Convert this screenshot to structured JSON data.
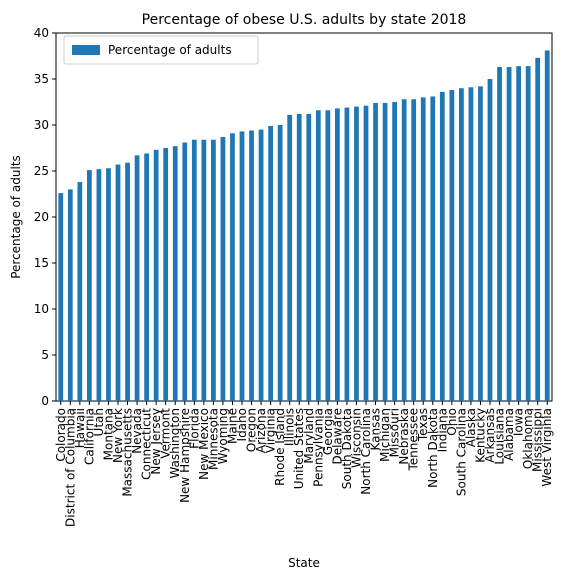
{
  "chart_data": {
    "type": "bar",
    "title": "Percentage of obese U.S. adults by state 2018",
    "xlabel": "State",
    "ylabel": "Percentage of adults",
    "ylim": [
      0,
      40
    ],
    "yticks": [
      0,
      5,
      10,
      15,
      20,
      25,
      30,
      35,
      40
    ],
    "grid": false,
    "legend_position": "top-left",
    "bar_color": "#1f77b4",
    "categories": [
      "Colorado",
      "District of Columbia",
      "Hawaii",
      "California",
      "Utah",
      "Montana",
      "New York",
      "Massachusetts",
      "Nevada",
      "Connecticut",
      "New Jersey",
      "Vermont",
      "Washington",
      "New Hampshire",
      "Florida",
      "New Mexico",
      "Minnesota",
      "Wyoming",
      "Maine",
      "Idaho",
      "Oregon",
      "Arizona",
      "Virginia",
      "Rhode Island",
      "Illinois",
      "United States",
      "Maryland",
      "Pennsylvania",
      "Georgia",
      "Delaware",
      "South Dakota",
      "Wisconsin",
      "North Carolina",
      "Kansas",
      "Michigan",
      "Missouri",
      "Nebraska",
      "Tennessee",
      "Texas",
      "North Dakota",
      "Indiana",
      "Ohio",
      "South Carolina",
      "Alaska",
      "Kentucky",
      "Arkansas",
      "Louisiana",
      "Alabama",
      "Iowa",
      "Oklahoma",
      "Mississippi",
      "West Virginia"
    ],
    "series": [
      {
        "name": "Percentage of adults",
        "values": [
          22.6,
          23.0,
          23.8,
          25.1,
          25.2,
          25.3,
          25.7,
          25.9,
          26.7,
          26.9,
          27.3,
          27.5,
          27.7,
          28.1,
          28.4,
          28.4,
          28.4,
          28.7,
          29.1,
          29.3,
          29.4,
          29.5,
          29.9,
          30.0,
          31.1,
          31.2,
          31.2,
          31.6,
          31.6,
          31.8,
          31.9,
          32.0,
          32.1,
          32.4,
          32.4,
          32.5,
          32.8,
          32.8,
          33.0,
          33.1,
          33.6,
          33.8,
          34.0,
          34.1,
          34.2,
          35.0,
          36.3,
          36.3,
          36.4,
          36.4,
          37.3,
          38.1
        ]
      }
    ]
  }
}
